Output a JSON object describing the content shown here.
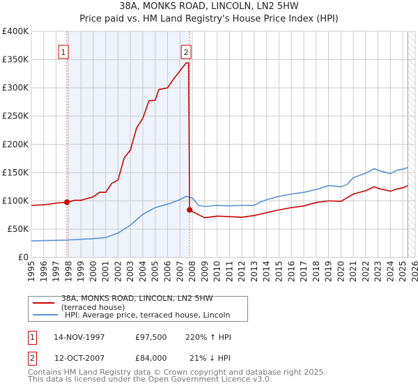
{
  "title": "38A, MONKS ROAD, LINCOLN, LN2 5HW",
  "subtitle": "Price paid vs. HM Land Registry's House Price Index (HPI)",
  "colors": {
    "property": "#cc0000",
    "hpi": "#5b8fd0",
    "shade": "#eef3fc"
  },
  "legend": {
    "property": "38A, MONKS ROAD, LINCOLN, LN2 5HW (terraced house)",
    "hpi": "HPI: Average price, terraced house, Lincoln"
  },
  "sales": [
    {
      "num": "1",
      "date": "14-NOV-1997",
      "price": "£97,500",
      "delta": "220% ↑ HPI"
    },
    {
      "num": "2",
      "date": "12-OCT-2007",
      "price": "£84,000",
      "delta": "21% ↓ HPI"
    }
  ],
  "footer": [
    "Contains HM Land Registry data © Crown copyright and database right 2025.",
    "This data is licensed under the Open Government Licence v3.0."
  ],
  "chart_data": {
    "type": "line",
    "xlim": [
      1995,
      2026
    ],
    "ylim": [
      0,
      400000
    ],
    "yticks": [
      0,
      50000,
      100000,
      150000,
      200000,
      250000,
      300000,
      350000,
      400000
    ],
    "ytick_labels": [
      "£0",
      "£50K",
      "£100K",
      "£150K",
      "£200K",
      "£250K",
      "£300K",
      "£350K",
      "£400K"
    ],
    "xticks": [
      1995,
      1996,
      1997,
      1998,
      1999,
      2000,
      2001,
      2002,
      2003,
      2004,
      2005,
      2006,
      2007,
      2008,
      2009,
      2010,
      2011,
      2012,
      2013,
      2014,
      2015,
      2016,
      2017,
      2018,
      2019,
      2020,
      2021,
      2022,
      2023,
      2024,
      2025,
      2026
    ],
    "grid": true,
    "shaded_range": [
      1997.87,
      2007.78
    ],
    "forecast_hatch_from": 2025.4,
    "markers": [
      {
        "label": "1",
        "x": 1997.87,
        "y": 97500
      },
      {
        "label": "2",
        "x": 2007.78,
        "y": 84000
      }
    ],
    "series": [
      {
        "name": "38A, MONKS ROAD, LINCOLN, LN2 5HW (terraced house)",
        "x": [
          1995,
          1996,
          1997,
          1997.87,
          1998.5,
          1999,
          2000,
          2000.5,
          2001,
          2001.5,
          2002,
          2002.5,
          2003,
          2003.5,
          2004,
          2004.5,
          2005,
          2005.3,
          2006,
          2006.5,
          2007,
          2007.5,
          2007.7,
          2007.78,
          2008,
          2009,
          2010,
          2011,
          2012,
          2013,
          2014,
          2015,
          2016,
          2017,
          2018,
          2019,
          2020,
          2021,
          2022,
          2022.7,
          2023,
          2024,
          2024.5,
          2025,
          2025.4
        ],
        "values": [
          92000,
          93000,
          96000,
          97500,
          101000,
          101000,
          107000,
          115000,
          115000,
          131000,
          137000,
          176000,
          190000,
          229000,
          246000,
          277000,
          278000,
          297000,
          300000,
          316000,
          330000,
          344000,
          344000,
          84000,
          81000,
          70000,
          73000,
          72000,
          71000,
          74000,
          79000,
          84000,
          88000,
          91000,
          97000,
          100000,
          99000,
          112000,
          118000,
          125000,
          122000,
          117000,
          121000,
          123000,
          127000
        ]
      },
      {
        "name": "HPI: Average price, terraced house, Lincoln",
        "x": [
          1995,
          1996,
          1997,
          1997.87,
          1999,
          2000,
          2001,
          2002,
          2003,
          2004,
          2005,
          2006,
          2007,
          2007.5,
          2008,
          2008.5,
          2009,
          2010,
          2011,
          2012,
          2013,
          2013.5,
          2014,
          2015,
          2016,
          2017,
          2018,
          2019,
          2020,
          2020.5,
          2021,
          2022,
          2022.7,
          2023,
          2024,
          2024.5,
          2025,
          2025.4
        ],
        "values": [
          29000,
          29500,
          30000,
          30500,
          32000,
          33000,
          35000,
          43000,
          57000,
          76000,
          88000,
          94000,
          102000,
          108000,
          105000,
          92000,
          90000,
          92000,
          91000,
          92000,
          92000,
          98000,
          102000,
          108000,
          112000,
          115000,
          120000,
          127000,
          125000,
          129000,
          141000,
          149000,
          157000,
          154000,
          148000,
          154000,
          156000,
          159000
        ]
      }
    ]
  }
}
